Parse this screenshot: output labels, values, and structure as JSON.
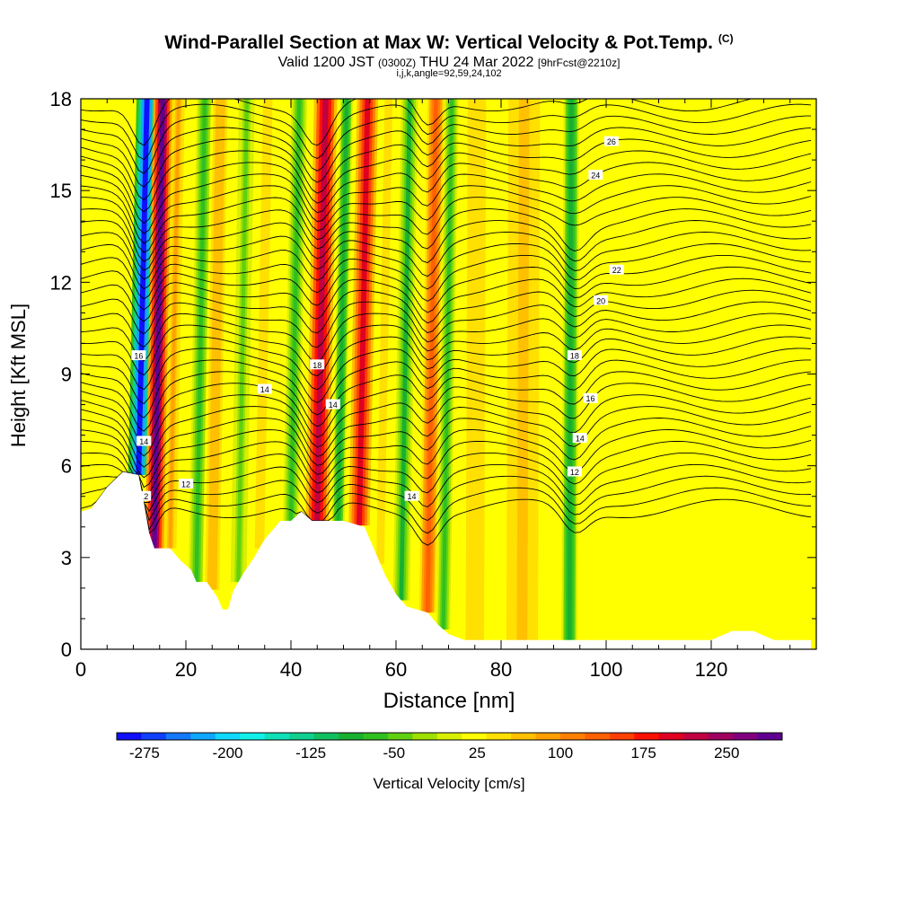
{
  "header": {
    "title": "Wind-Parallel Section at Max W: Vertical Velocity & Pot.Temp.",
    "copyright_mark": "(C)",
    "valid_prefix": "Valid 1200 JST",
    "valid_utc": "(0300Z)",
    "valid_date": "THU 24 Mar 2022",
    "forecast_note": "[9hrFcst@2210z]",
    "indices": "i,j,k,angle=92,59,24,102"
  },
  "chart_data": {
    "type": "heatmap",
    "xlabel": "Distance [nm]",
    "ylabel": "Height [Kft MSL]",
    "xlim": [
      0,
      140
    ],
    "ylim": [
      0,
      18
    ],
    "x_ticks": [
      0,
      20,
      40,
      60,
      80,
      100,
      120
    ],
    "y_ticks": [
      0,
      3,
      6,
      9,
      12,
      15,
      18
    ],
    "colorbar": {
      "title": "Vertical Velocity [cm/s]",
      "range": [
        -300,
        300
      ],
      "tick_labels": [
        -275,
        -200,
        -125,
        -50,
        25,
        100,
        175,
        250
      ],
      "colors": [
        "#1010ff",
        "#1040ff",
        "#1478ff",
        "#10a8ff",
        "#10d8ff",
        "#10f0e8",
        "#10e0b8",
        "#10d090",
        "#10c060",
        "#18b030",
        "#30c020",
        "#60d010",
        "#a0e000",
        "#d8f000",
        "#ffff00",
        "#ffe000",
        "#ffc000",
        "#ffa000",
        "#ff8000",
        "#ff6000",
        "#ff4000",
        "#ff1000",
        "#e00020",
        "#c00040",
        "#a00060",
        "#800080",
        "#600090"
      ]
    },
    "wind_bands": [
      {
        "x": 11,
        "w": -300,
        "width": 2.0
      },
      {
        "x": 14,
        "w": 300,
        "width": 1.8
      },
      {
        "x": 17,
        "w": 85,
        "width": 1.2
      },
      {
        "x": 22,
        "w": -60,
        "width": 1.5
      },
      {
        "x": 25,
        "w": 70,
        "width": 1.8
      },
      {
        "x": 30,
        "w": -40,
        "width": 1.5
      },
      {
        "x": 34,
        "w": 45,
        "width": 1.8
      },
      {
        "x": 40,
        "w": -70,
        "width": 1.5
      },
      {
        "x": 45,
        "w": 230,
        "width": 2.2
      },
      {
        "x": 49,
        "w": -90,
        "width": 1.2
      },
      {
        "x": 53,
        "w": 190,
        "width": 2.0
      },
      {
        "x": 57,
        "w": 40,
        "width": 1.5
      },
      {
        "x": 61,
        "w": -80,
        "width": 1.6
      },
      {
        "x": 66,
        "w": 140,
        "width": 1.6
      },
      {
        "x": 69,
        "w": -70,
        "width": 1.3
      },
      {
        "x": 75,
        "w": 40,
        "width": 3.5
      },
      {
        "x": 84,
        "w": 60,
        "width": 4.0
      },
      {
        "x": 93,
        "w": -100,
        "width": 1.5
      },
      {
        "x": 101,
        "w": 30,
        "width": 3.0
      },
      {
        "x": 112,
        "w": 25,
        "width": 6.0
      },
      {
        "x": 128,
        "w": 15,
        "width": 6.0
      }
    ],
    "terrain": [
      [
        0,
        4.5
      ],
      [
        2,
        4.6
      ],
      [
        5,
        5.3
      ],
      [
        8,
        5.8
      ],
      [
        11,
        5.7
      ],
      [
        12,
        4.8
      ],
      [
        13,
        3.8
      ],
      [
        14,
        3.3
      ],
      [
        17,
        3.3
      ],
      [
        19,
        2.9
      ],
      [
        21,
        2.6
      ],
      [
        22,
        2.2
      ],
      [
        24,
        2.2
      ],
      [
        26,
        1.7
      ],
      [
        27,
        1.3
      ],
      [
        28,
        1.3
      ],
      [
        29,
        1.9
      ],
      [
        31,
        2.5
      ],
      [
        33,
        3.0
      ],
      [
        35,
        3.6
      ],
      [
        38,
        4.2
      ],
      [
        40,
        4.2
      ],
      [
        42,
        4.5
      ],
      [
        44,
        4.2
      ],
      [
        46,
        4.2
      ],
      [
        50,
        4.2
      ],
      [
        54,
        4.0
      ],
      [
        56,
        3.2
      ],
      [
        58,
        2.4
      ],
      [
        60,
        1.8
      ],
      [
        62,
        1.4
      ],
      [
        64,
        1.3
      ],
      [
        66,
        1.2
      ],
      [
        68,
        0.8
      ],
      [
        70,
        0.5
      ],
      [
        73,
        0.3
      ],
      [
        80,
        0.3
      ],
      [
        120,
        0.3
      ],
      [
        124,
        0.6
      ],
      [
        128,
        0.6
      ],
      [
        132,
        0.3
      ],
      [
        139,
        0.3
      ]
    ],
    "theta_labels": [
      "12",
      "14",
      "16",
      "18",
      "20",
      "22",
      "24",
      "26"
    ]
  }
}
